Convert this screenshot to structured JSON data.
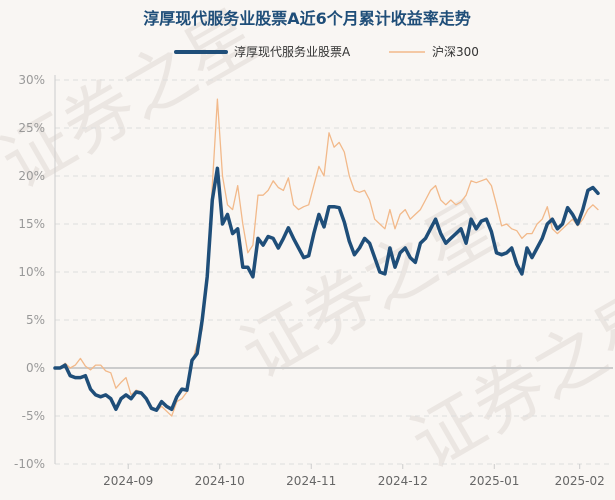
{
  "chart_data": {
    "type": "line",
    "title": "淳厚现代服务业股票A近6个月累计收益率走势",
    "watermark": "证券之星",
    "y_ticks": [
      "30%",
      "25%",
      "20%",
      "15%",
      "10%",
      "5%",
      "0%",
      "-5%",
      "-10%"
    ],
    "y_tick_values": [
      30,
      25,
      20,
      15,
      10,
      5,
      0,
      -5,
      -10
    ],
    "ylim": [
      -10,
      30
    ],
    "x_ticks": [
      "2024-09",
      "2024-10",
      "2024-11",
      "2024-12",
      "2025-01",
      "2025-02"
    ],
    "x_tick_positions": [
      12,
      27,
      42,
      57,
      72,
      86
    ],
    "xlim": [
      0,
      89
    ],
    "grid": true,
    "legend": "top-center",
    "series": [
      {
        "name": "淳厚现代服务业股票A",
        "color": "#1f4e79",
        "values": [
          0,
          0,
          0.3,
          -0.8,
          -1,
          -1,
          -0.8,
          -2.2,
          -2.8,
          -3,
          -2.8,
          -3.2,
          -4.3,
          -3.2,
          -2.8,
          -3.2,
          -2.5,
          -2.6,
          -3.2,
          -4.2,
          -4.4,
          -3.5,
          -4,
          -4.3,
          -3,
          -2.2,
          -2.3,
          0.8,
          1.5,
          5,
          9.5,
          17.5,
          20.8,
          15,
          16,
          14,
          14.5,
          10.5,
          10.5,
          9.5,
          13.5,
          12.8,
          13.7,
          13.5,
          12.5,
          13.5,
          14.6,
          13.5,
          12.5,
          11.5,
          11.7,
          14,
          16,
          14.7,
          16.8,
          16.8,
          16.7,
          15.2,
          13.2,
          11.8,
          12.5,
          13.5,
          13,
          11.5,
          10,
          9.8,
          12.5,
          10.5,
          12,
          12.5,
          11.5,
          11,
          13,
          13.5,
          14.5,
          15.5,
          14,
          13,
          13.5,
          14,
          14.5,
          13,
          15.5,
          14.5,
          15.3,
          15.5,
          14.2,
          12,
          11.8,
          12
        ]
      },
      {
        "name": "沪深300",
        "color": "#f2b98a",
        "values": [
          0,
          0,
          0.5,
          0,
          0.3,
          1,
          0.2,
          -0.2,
          0.3,
          0.3,
          -0.3,
          -0.5,
          -2.1,
          -1.5,
          -1,
          -2.8,
          -2.3,
          -2.5,
          -3.1,
          -4,
          -4.5,
          -4,
          -4.5,
          -5,
          -3.5,
          -3.2,
          -2.5,
          0.5,
          2.5,
          4,
          10,
          19,
          28,
          20,
          17,
          16.5,
          19,
          15,
          12,
          12.8,
          18,
          18,
          18.5,
          19.5,
          18.8,
          18.5,
          19.8,
          17,
          16.5,
          16.8,
          17,
          19,
          21,
          20,
          24.5,
          23,
          23.5,
          22.5,
          20,
          18.5,
          18.3,
          18.5,
          17.5,
          15.5,
          15,
          14.5,
          16.5,
          14.5,
          16,
          16.5,
          15.5,
          16,
          16.5,
          17.5,
          18.5,
          19,
          17.5,
          17,
          17.5,
          17,
          17.3,
          18,
          19.5,
          19.3,
          19.5,
          19.7,
          19,
          17,
          14.8,
          15
        ]
      }
    ],
    "extra_values_a": [
      12.5,
      10.8,
      9.8,
      12.5,
      11.5,
      12.5,
      13.5,
      15,
      15.5,
      14.5,
      15,
      16.7,
      16,
      15,
      16.5,
      18.5,
      18.8,
      18.2
    ],
    "extra_values_b": [
      14.5,
      14.3,
      13.5,
      14,
      14,
      15,
      15.5,
      16.8,
      14.5,
      14,
      14.5,
      15,
      15.5,
      14.8,
      15.5,
      16.5,
      17,
      16.5
    ]
  }
}
